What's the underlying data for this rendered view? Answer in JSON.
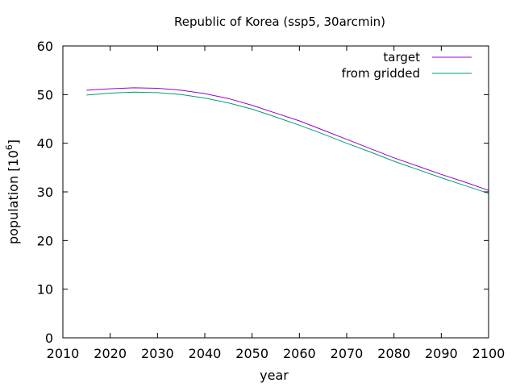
{
  "chart_data": {
    "type": "line",
    "title": "Republic of Korea (ssp5, 30arcmin)",
    "xlabel": "year",
    "ylabel_text": "population [10",
    "ylabel_exp": "6",
    "ylabel_close": "]",
    "xlim": [
      2010,
      2100
    ],
    "ylim": [
      0,
      60
    ],
    "xticks": [
      2010,
      2020,
      2030,
      2040,
      2050,
      2060,
      2070,
      2080,
      2090,
      2100
    ],
    "yticks": [
      0,
      10,
      20,
      30,
      40,
      50,
      60
    ],
    "grid": false,
    "legend_position": "top-right",
    "series": [
      {
        "name": "target",
        "color": "#9400d3",
        "x": [
          2015,
          2020,
          2025,
          2030,
          2035,
          2040,
          2045,
          2050,
          2055,
          2060,
          2065,
          2070,
          2075,
          2080,
          2085,
          2090,
          2095,
          2100
        ],
        "y": [
          50.9,
          51.2,
          51.4,
          51.3,
          50.9,
          50.2,
          49.2,
          47.8,
          46.2,
          44.6,
          42.7,
          40.8,
          38.9,
          37.0,
          35.3,
          33.6,
          32.0,
          30.3
        ]
      },
      {
        "name": "from gridded",
        "color": "#009e73",
        "x": [
          2015,
          2020,
          2025,
          2030,
          2035,
          2040,
          2045,
          2050,
          2055,
          2060,
          2065,
          2070,
          2075,
          2080,
          2085,
          2090,
          2095,
          2100
        ],
        "y": [
          49.9,
          50.3,
          50.5,
          50.4,
          50.0,
          49.3,
          48.3,
          47.0,
          45.4,
          43.7,
          41.9,
          40.0,
          38.2,
          36.3,
          34.6,
          32.9,
          31.3,
          29.7
        ]
      }
    ]
  }
}
